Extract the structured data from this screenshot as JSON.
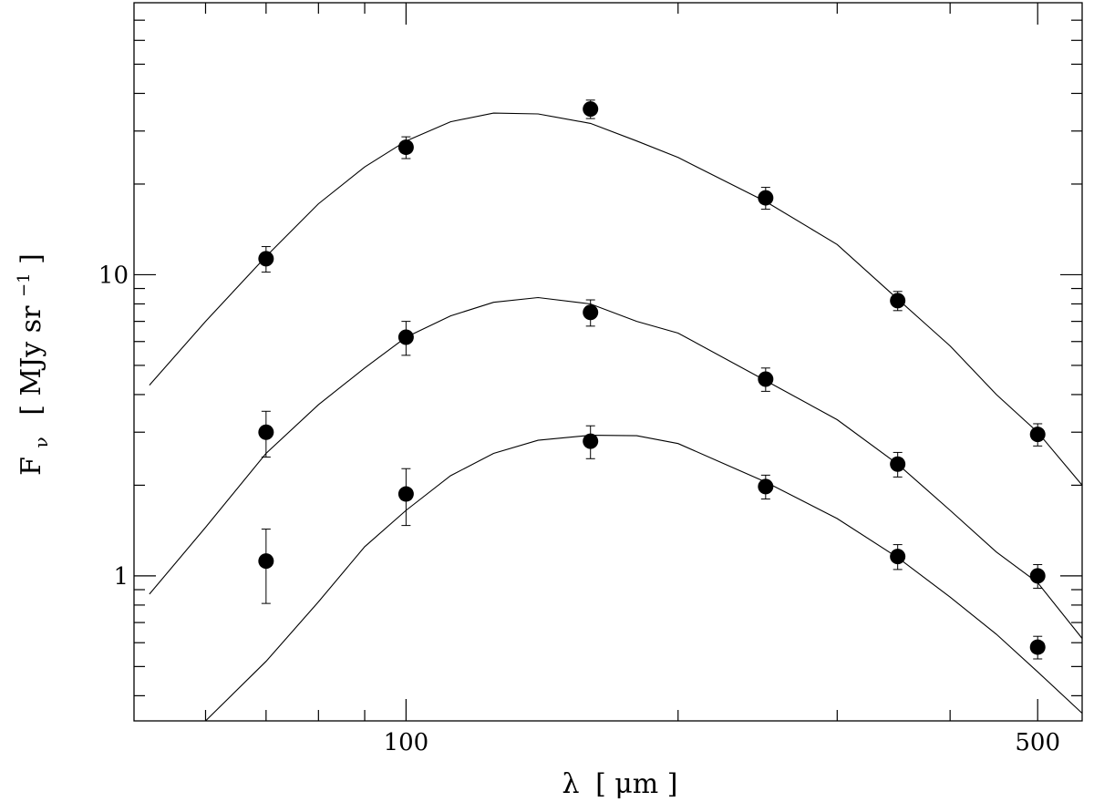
{
  "chart_data": {
    "type": "scatter",
    "title": "",
    "xlabel": {
      "symbol": "λ",
      "unit": "[ μm ]"
    },
    "ylabel": {
      "base": "F",
      "sub": "ν",
      "unit_pre": "[ MJy sr",
      "unit_sup": "−1",
      "unit_post": " ]"
    },
    "xscale": "log",
    "yscale": "log",
    "xlim": [
      50,
      560
    ],
    "ylim": [
      0.33,
      80
    ],
    "x_major_ticks": [
      100,
      500
    ],
    "x_tick_labels": [
      "100",
      "500"
    ],
    "x_minor_ticks": [
      60,
      70,
      80,
      90,
      200,
      300,
      400
    ],
    "y_major_ticks": [
      1,
      10
    ],
    "y_tick_labels": [
      "1",
      "10"
    ],
    "y_minor_ticks": [
      0.4,
      0.5,
      0.6,
      0.7,
      0.8,
      0.9,
      2,
      3,
      4,
      5,
      6,
      7,
      8,
      9,
      20,
      30,
      40,
      50,
      60,
      70
    ],
    "grid": false,
    "legend": "none",
    "series": [
      {
        "points": [
          {
            "x": 70,
            "y": 11.3,
            "err": 1.1
          },
          {
            "x": 100,
            "y": 26.5,
            "err": 2.2
          },
          {
            "x": 160,
            "y": 35.5,
            "err": 2.5
          },
          {
            "x": 250,
            "y": 18.0,
            "err": 1.5
          },
          {
            "x": 350,
            "y": 8.2,
            "err": 0.6
          },
          {
            "x": 500,
            "y": 2.95,
            "err": 0.25
          }
        ],
        "model": [
          [
            52,
            4.3
          ],
          [
            60,
            7.0
          ],
          [
            70,
            11.5
          ],
          [
            80,
            17.2
          ],
          [
            90,
            22.8
          ],
          [
            100,
            27.8
          ],
          [
            112,
            32.2
          ],
          [
            125,
            34.4
          ],
          [
            140,
            34.2
          ],
          [
            160,
            31.8
          ],
          [
            180,
            27.8
          ],
          [
            200,
            24.5
          ],
          [
            250,
            17.5
          ],
          [
            300,
            12.6
          ],
          [
            350,
            8.3
          ],
          [
            400,
            5.8
          ],
          [
            450,
            4.0
          ],
          [
            500,
            3.0
          ],
          [
            560,
            2.0
          ]
        ]
      },
      {
        "points": [
          {
            "x": 70,
            "y": 3.0,
            "err": 0.52
          },
          {
            "x": 100,
            "y": 6.2,
            "err": 0.8
          },
          {
            "x": 160,
            "y": 7.5,
            "err": 0.75
          },
          {
            "x": 250,
            "y": 4.5,
            "err": 0.4
          },
          {
            "x": 350,
            "y": 2.35,
            "err": 0.22
          },
          {
            "x": 500,
            "y": 1.0,
            "err": 0.09
          }
        ],
        "model": [
          [
            52,
            0.87
          ],
          [
            60,
            1.45
          ],
          [
            70,
            2.55
          ],
          [
            80,
            3.7
          ],
          [
            90,
            4.9
          ],
          [
            100,
            6.2
          ],
          [
            112,
            7.3
          ],
          [
            125,
            8.1
          ],
          [
            140,
            8.4
          ],
          [
            160,
            8.0
          ],
          [
            180,
            7.0
          ],
          [
            200,
            6.4
          ],
          [
            250,
            4.45
          ],
          [
            300,
            3.3
          ],
          [
            350,
            2.35
          ],
          [
            400,
            1.65
          ],
          [
            450,
            1.2
          ],
          [
            500,
            0.95
          ],
          [
            560,
            0.62
          ]
        ]
      },
      {
        "points": [
          {
            "x": 70,
            "y": 1.12,
            "err": 0.31
          },
          {
            "x": 100,
            "y": 1.87,
            "err": 0.4
          },
          {
            "x": 160,
            "y": 2.8,
            "err": 0.35
          },
          {
            "x": 250,
            "y": 1.98,
            "err": 0.18
          },
          {
            "x": 350,
            "y": 1.16,
            "err": 0.11
          },
          {
            "x": 500,
            "y": 0.58,
            "err": 0.05
          }
        ],
        "model": [
          [
            60,
            0.33
          ],
          [
            70,
            0.52
          ],
          [
            80,
            0.82
          ],
          [
            90,
            1.25
          ],
          [
            100,
            1.65
          ],
          [
            112,
            2.15
          ],
          [
            125,
            2.55
          ],
          [
            140,
            2.82
          ],
          [
            160,
            2.93
          ],
          [
            180,
            2.92
          ],
          [
            200,
            2.75
          ],
          [
            250,
            2.05
          ],
          [
            300,
            1.55
          ],
          [
            350,
            1.15
          ],
          [
            400,
            0.85
          ],
          [
            450,
            0.64
          ],
          [
            500,
            0.48
          ],
          [
            560,
            0.35
          ]
        ]
      }
    ]
  }
}
